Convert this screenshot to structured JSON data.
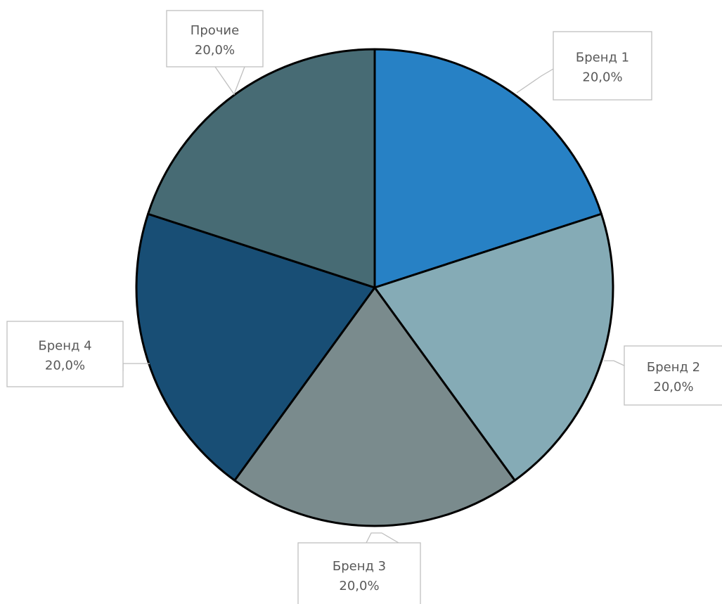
{
  "chart_data": {
    "type": "pie",
    "title": "",
    "start_angle_deg": 0,
    "direction": "clockwise",
    "slices": [
      {
        "label": "Бренд 1",
        "value": 20.0,
        "percent_label": "20,0%",
        "color": "#2781c5"
      },
      {
        "label": "Бренд 2",
        "value": 20.0,
        "percent_label": "20,0%",
        "color": "#85abb6"
      },
      {
        "label": "Бренд 3",
        "value": 20.0,
        "percent_label": "20,0%",
        "color": "#7a8b8d"
      },
      {
        "label": "Бренд 4",
        "value": 20.0,
        "percent_label": "20,0%",
        "color": "#184e75"
      },
      {
        "label": "Прочие",
        "value": 20.0,
        "percent_label": "20,0%",
        "color": "#476b74"
      }
    ],
    "slice_border_color": "#000000",
    "callout_border_color": "#bfbfbf",
    "label_text_color": "#595959",
    "legend": "none",
    "data_labels": "callouts"
  }
}
